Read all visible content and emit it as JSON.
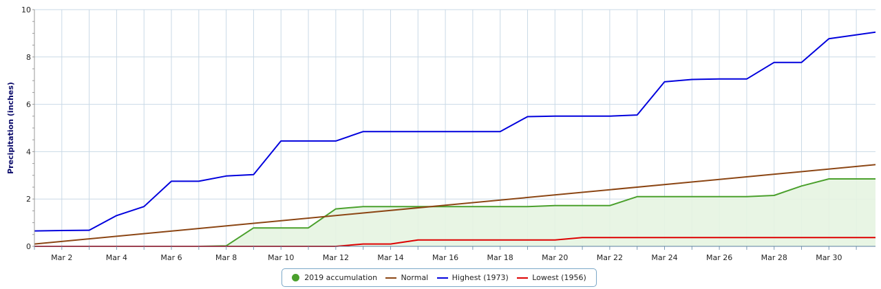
{
  "chart_data": {
    "type": "line",
    "title": "",
    "xlabel": "",
    "ylabel": "Precipitation (inches)",
    "ylim": [
      0,
      10
    ],
    "yticks": [
      "0",
      "2",
      "4",
      "6",
      "8",
      "10"
    ],
    "xlim": [
      1,
      31.7
    ],
    "xticks": [
      {
        "x": 2,
        "label": "Mar 2"
      },
      {
        "x": 4,
        "label": "Mar 4"
      },
      {
        "x": 6,
        "label": "Mar 6"
      },
      {
        "x": 8,
        "label": "Mar 8"
      },
      {
        "x": 10,
        "label": "Mar 10"
      },
      {
        "x": 12,
        "label": "Mar 12"
      },
      {
        "x": 14,
        "label": "Mar 14"
      },
      {
        "x": 16,
        "label": "Mar 16"
      },
      {
        "x": 18,
        "label": "Mar 18"
      },
      {
        "x": 20,
        "label": "Mar 20"
      },
      {
        "x": 22,
        "label": "Mar 22"
      },
      {
        "x": 24,
        "label": "Mar 24"
      },
      {
        "x": 26,
        "label": "Mar 26"
      },
      {
        "x": 28,
        "label": "Mar 28"
      },
      {
        "x": 30,
        "label": "Mar 30"
      }
    ],
    "grid": true,
    "legend_position": "bottom-center",
    "series": [
      {
        "name": "2019 accumulation",
        "color": "#4aa02c",
        "fill": "#e6f4e1",
        "marker": "dot",
        "x": [
          1,
          2,
          3,
          4,
          5,
          6,
          7,
          8,
          9,
          10,
          11,
          12,
          13,
          14,
          15,
          16,
          17,
          18,
          19,
          20,
          21,
          22,
          23,
          24,
          25,
          26,
          27,
          28,
          29,
          30,
          31
        ],
        "y": [
          0,
          0,
          0,
          0,
          0,
          0,
          0,
          0.02,
          0.78,
          0.78,
          0.78,
          1.58,
          1.68,
          1.68,
          1.68,
          1.68,
          1.68,
          1.68,
          1.68,
          1.72,
          1.72,
          1.72,
          2.1,
          2.1,
          2.1,
          2.1,
          2.1,
          2.15,
          2.55,
          2.85,
          2.85
        ]
      },
      {
        "name": "Normal",
        "color": "#8b4513",
        "marker": "line",
        "x": [
          1,
          31.7
        ],
        "y": [
          0.1,
          3.45
        ]
      },
      {
        "name": "Highest (1973)",
        "color": "#0000dd",
        "marker": "line",
        "x": [
          1,
          2,
          3,
          4,
          5,
          6,
          7,
          8,
          9,
          10,
          11,
          12,
          13,
          14,
          15,
          16,
          17,
          18,
          19,
          20,
          21,
          22,
          23,
          24,
          25,
          26,
          27,
          28,
          29,
          30,
          31.7
        ],
        "y": [
          0.65,
          0.67,
          0.68,
          1.3,
          1.68,
          2.75,
          2.75,
          2.97,
          3.03,
          4.45,
          4.45,
          4.45,
          4.85,
          4.85,
          4.85,
          4.85,
          4.85,
          4.85,
          5.48,
          5.5,
          5.5,
          5.5,
          5.55,
          6.95,
          7.05,
          7.07,
          7.07,
          7.77,
          7.77,
          8.77,
          9.05
        ]
      },
      {
        "name": "Lowest (1956)",
        "color": "#dd0000",
        "marker": "line",
        "x": [
          1,
          2,
          3,
          4,
          5,
          6,
          7,
          8,
          9,
          10,
          11,
          12,
          13,
          14,
          15,
          16,
          17,
          18,
          19,
          20,
          21,
          22,
          23,
          24,
          25,
          26,
          27,
          28,
          29,
          30,
          31.7
        ],
        "y": [
          0,
          0,
          0,
          0,
          0,
          0,
          0,
          0,
          0,
          0,
          0,
          0,
          0.1,
          0.1,
          0.27,
          0.27,
          0.27,
          0.27,
          0.27,
          0.27,
          0.37,
          0.37,
          0.37,
          0.37,
          0.37,
          0.37,
          0.37,
          0.37,
          0.37,
          0.37,
          0.37
        ]
      }
    ]
  }
}
